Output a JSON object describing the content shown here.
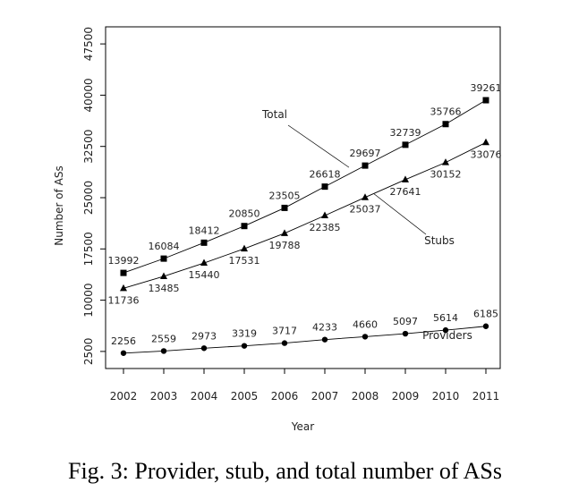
{
  "caption": "Fig. 3: Provider, stub, and total number of ASs",
  "chart_data": {
    "type": "line",
    "title": "",
    "xlabel": "Year",
    "ylabel": "Number of ASs",
    "x": [
      2002,
      2003,
      2004,
      2005,
      2006,
      2007,
      2008,
      2009,
      2010,
      2011
    ],
    "ylim": [
      0,
      50000
    ],
    "yticks": [
      2500,
      10000,
      17500,
      25000,
      32500,
      40000,
      47500
    ],
    "ytick_labels": [
      "2500",
      "10000",
      "17500",
      "25000",
      "32500",
      "40000",
      "47500"
    ],
    "grid": false,
    "series": [
      {
        "name": "Total",
        "marker": "square",
        "values": [
          13992,
          16084,
          18412,
          20850,
          23505,
          26618,
          29697,
          32739,
          35766,
          39261
        ],
        "labels": [
          "13992",
          "16084",
          "18412",
          "20850",
          "23505",
          "26618",
          "29697",
          "32739",
          "35766",
          "39261"
        ]
      },
      {
        "name": "Stubs",
        "marker": "triangle",
        "values": [
          11736,
          13485,
          15440,
          17531,
          19788,
          22385,
          25037,
          27641,
          30152,
          33076
        ],
        "labels": [
          "11736",
          "13485",
          "15440",
          "17531",
          "19788",
          "22385",
          "25037",
          "27641",
          "30152",
          "33076"
        ]
      },
      {
        "name": "Providers",
        "marker": "circle",
        "values": [
          2256,
          2559,
          2973,
          3319,
          3717,
          4233,
          4660,
          5097,
          5614,
          6185
        ],
        "labels": [
          "2256",
          "2559",
          "2973",
          "3319",
          "3717",
          "4233",
          "4660",
          "5097",
          "5614",
          "6185"
        ]
      }
    ]
  }
}
